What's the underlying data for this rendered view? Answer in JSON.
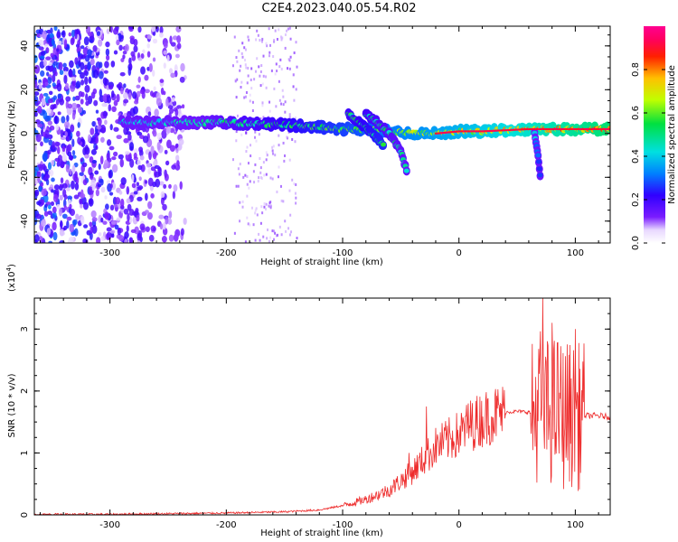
{
  "title": "C2E4.2023.040.05.54.R02",
  "colors": {
    "line": "#ee2c2c",
    "spectro_low": "#5a00ff",
    "spectro_mid": "#22d2d2",
    "spectro_high": "#ff1a00"
  },
  "chart_data": [
    {
      "type": "heatmap",
      "xlabel": "Height of straight line (km)",
      "ylabel": "Frequency (Hz)",
      "xlim": [
        -365,
        130
      ],
      "ylim": [
        -50,
        49
      ],
      "x_ticks": [
        -300,
        -200,
        -100,
        0,
        100
      ],
      "x_tick_labels": [
        "-300",
        "-200",
        "-100",
        "0",
        "100"
      ],
      "y_ticks": [
        -40,
        -20,
        0,
        20,
        40
      ],
      "y_tick_labels": [
        "-40",
        "-20",
        "0",
        "20",
        "40"
      ],
      "colorbar": {
        "label": "Normalized spectral amplitude",
        "range": [
          0,
          1
        ],
        "ticks": [
          0,
          0.2,
          0.4,
          0.6,
          0.8
        ],
        "tick_labels": [
          "0.0",
          "0.2",
          "0.4",
          "0.6",
          "0.8"
        ],
        "colormap": "rainbow (white-purple-blue-cyan-green-yellow-red-magenta)"
      },
      "features": [
        {
          "description": "broadband noise",
          "x_range": [
            -365,
            -235
          ],
          "freq_range": [
            -50,
            49
          ],
          "amplitude": 0.15
        },
        {
          "description": "noise streaks",
          "x_range": [
            -195,
            -140
          ],
          "freq_range": [
            -50,
            49
          ],
          "amplitude": 0.05
        },
        {
          "description": "main track",
          "x": [
            -290,
            -250,
            -200,
            -150,
            -120,
            -100,
            -80,
            -60,
            -40,
            -20,
            0,
            20,
            60,
            100,
            130
          ],
          "freq": [
            5,
            5,
            5,
            4,
            3,
            2,
            2,
            1,
            0,
            0,
            1,
            1,
            2,
            2,
            2
          ]
        },
        {
          "description": "descending arc 1",
          "x": [
            -95,
            -85,
            -75,
            -65
          ],
          "freq": [
            9,
            5,
            0,
            -5
          ]
        },
        {
          "description": "descending arc 2",
          "x": [
            -80,
            -70,
            -60,
            -50,
            -45
          ],
          "freq": [
            9,
            5,
            0,
            -8,
            -17
          ]
        },
        {
          "description": "dip",
          "x": [
            65,
            68,
            70
          ],
          "freq": [
            0,
            -10,
            -20
          ]
        }
      ]
    },
    {
      "type": "line",
      "xlabel": "Height of straight line (km)",
      "ylabel": "SNR (10 * v/v)",
      "y_multiplier_label": "(x10",
      "y_multiplier_exp": "4",
      "xlim": [
        -365,
        130
      ],
      "ylim": [
        0,
        3.5
      ],
      "x_ticks": [
        -300,
        -200,
        -100,
        0,
        100
      ],
      "x_tick_labels": [
        "-300",
        "-200",
        "-100",
        "0",
        "100"
      ],
      "y_ticks": [
        0,
        1,
        2,
        3
      ],
      "y_tick_labels": [
        "0",
        "1",
        "2",
        "3"
      ],
      "series": [
        {
          "x": [
            -365,
            -300,
            -250,
            -200,
            -150,
            -120,
            -100,
            -80,
            -60,
            -50,
            -40,
            -30,
            -20,
            -10,
            0,
            10,
            20,
            30,
            40,
            50,
            60,
            65,
            70,
            75,
            80,
            85,
            90,
            95,
            100,
            105,
            110,
            120,
            130
          ],
          "y": [
            0.01,
            0.01,
            0.02,
            0.03,
            0.05,
            0.08,
            0.15,
            0.25,
            0.4,
            0.55,
            0.7,
            0.9,
            1.1,
            1.2,
            1.3,
            1.45,
            1.55,
            1.62,
            1.66,
            1.67,
            1.66,
            1.6,
            1.9,
            1.7,
            1.65,
            1.75,
            1.6,
            1.65,
            1.55,
            1.62,
            1.6,
            1.6,
            1.58
          ]
        }
      ],
      "peaks": [
        {
          "x": -43,
          "y": 1.0
        },
        {
          "x": -28,
          "y": 1.75
        },
        {
          "x": 8,
          "y": 1.8
        },
        {
          "x": 72,
          "y": 3.5
        },
        {
          "x": 80,
          "y": 3.1
        },
        {
          "x": 100,
          "y": 3.0
        }
      ]
    }
  ]
}
